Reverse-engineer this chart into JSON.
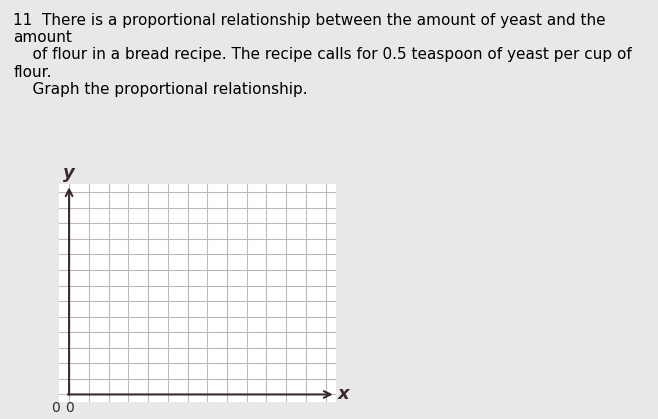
{
  "background_color": "#e8e8e8",
  "plot_bg_color": "#ffffff",
  "grid_color": "#c0b8b8",
  "axis_color": "#3a2a2a",
  "num_cols": 13,
  "num_rows": 13,
  "x_label": "x",
  "y_label": "y",
  "origin_label": "0",
  "title_text": "11  There is a proportional relationship between the amount of yeast and the amount\n    of flour in a bread recipe. The recipe calls for 0.5 teaspoon of yeast per cup of flour.\n    Graph the proportional relationship.",
  "title_fontsize": 11,
  "label_fontsize": 13
}
